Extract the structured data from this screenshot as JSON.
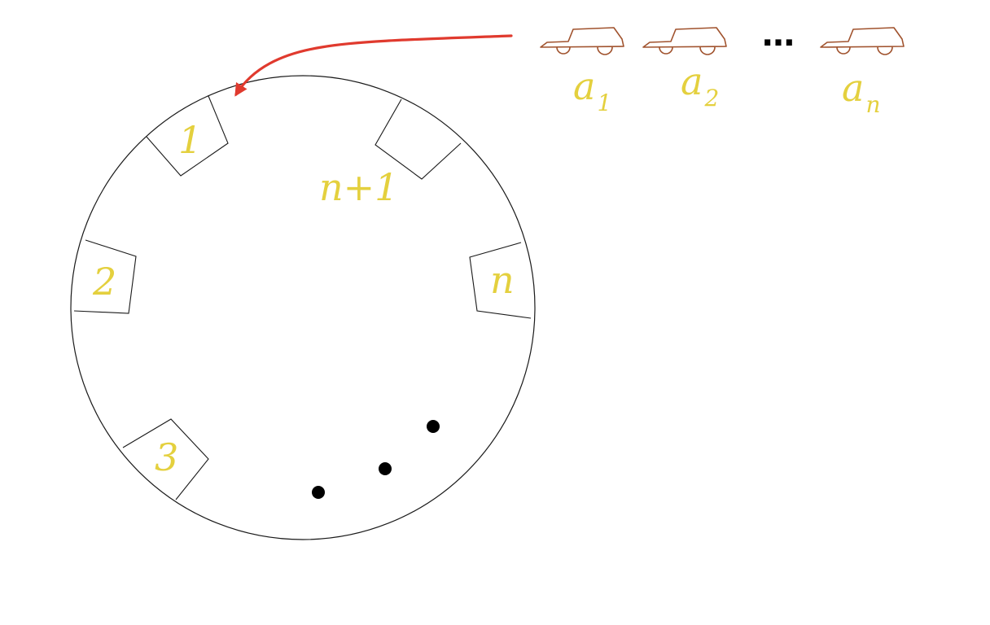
{
  "spots": {
    "spot_1": "1",
    "spot_2": "2",
    "spot_3": "3",
    "spot_n": "n",
    "spot_n_plus_1": "n+1"
  },
  "cars": [
    {
      "base": "a",
      "sub": "1"
    },
    {
      "base": "a",
      "sub": "2"
    },
    {
      "base": "a",
      "sub": "n"
    }
  ],
  "queue_ellipsis": "…",
  "colors": {
    "label": "#e4d03e",
    "car": "#a0522d",
    "arrow": "#e03a2e",
    "circle": "#1a1a1a",
    "dots": "#000000"
  }
}
